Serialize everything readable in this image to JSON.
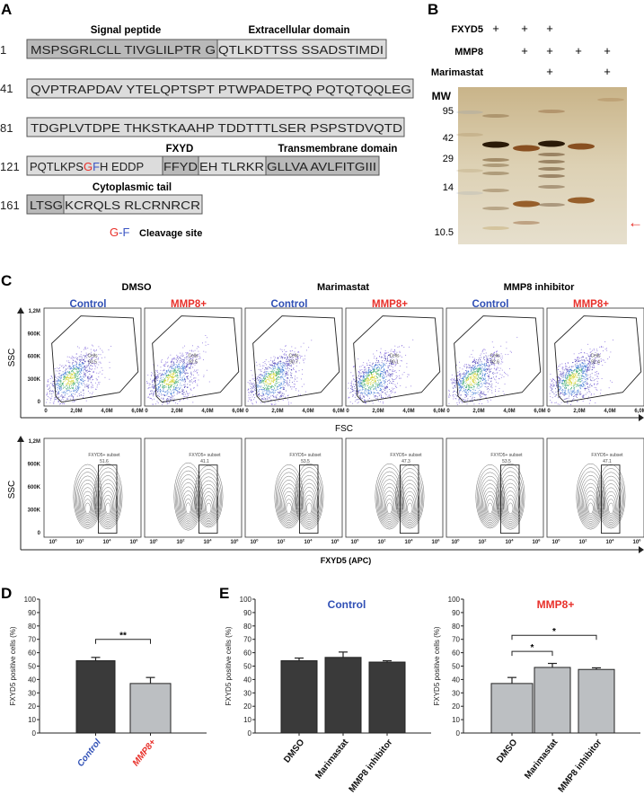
{
  "panel_a": {
    "letter": "A",
    "headers": {
      "signal": "Signal peptide",
      "extracellular": "Extracellular domain",
      "fxyd": "FXYD",
      "transmembrane": "Transmembrane domain",
      "cytoplasmic": "Cytoplasmic tail"
    },
    "rows": [
      {
        "num": "1",
        "segments": [
          "MSPSGRLCLL TIVGLILPTR G",
          "QTLKDTTSS SSADSTIMDI"
        ]
      },
      {
        "num": "41",
        "segments": [
          "QVPTRAPDAV YTELQPTSPT PTWPADETPQ PQTQTQQLEG"
        ]
      },
      {
        "num": "81",
        "segments": [
          "TDGPLVTDPE THKSTKAAHP TDDTTTLSER PSPSTDVQTD"
        ]
      },
      {
        "num": "121",
        "segments": [
          "PQTLKPS",
          "G",
          "F",
          "H EDDP",
          "FFYD",
          "EH TLRKR",
          "GLLVA AVLFITGIII"
        ]
      },
      {
        "num": "161",
        "segments": [
          "LTSG",
          "KCRQLS RLCRNRCR"
        ]
      }
    ],
    "legend": {
      "g": "G",
      "dash": "-",
      "f": "F",
      "label": "Cleavage site"
    },
    "colors": {
      "g": "#e8302a",
      "f": "#3b55c4",
      "dark_box": "#b9b9b9",
      "light_box": "#dcdcdc"
    }
  },
  "panel_b": {
    "letter": "B",
    "rows": [
      {
        "label": "FXYD5",
        "lanes": [
          "+",
          "+",
          "+",
          "",
          ""
        ]
      },
      {
        "label": "MMP8",
        "lanes": [
          "",
          "+",
          "+",
          "+",
          "+"
        ]
      },
      {
        "label": "Marimastat",
        "lanes": [
          "",
          "",
          "+",
          "",
          "+"
        ]
      }
    ],
    "mw_label": "MW",
    "mw_markers": [
      "95",
      "42",
      "29",
      "14",
      "10.5"
    ],
    "arrow": "←",
    "arrow_color": "#e8302a"
  },
  "panel_c": {
    "letter": "C",
    "groups": [
      "DMSO",
      "Marimastat",
      "MMP8 inhibitor"
    ],
    "conditions": [
      "Control",
      "MMP8+",
      "Control",
      "MMP8+",
      "Control",
      "MMP8+"
    ],
    "condition_colors": {
      "Control": "#2f4fb5",
      "MMP8+": "#e8302a"
    },
    "scatter": {
      "gate_name": "Cells",
      "gate_values": [
        "93.5",
        "92.5",
        "90.7",
        "90.1",
        "92.6",
        "92.4"
      ],
      "x_ticks": [
        "0",
        "2,0M",
        "4,0M",
        "6,0M"
      ],
      "y_ticks": [
        "1,2M",
        "900K",
        "600K",
        "300K",
        "0"
      ],
      "xlabel": "FSC",
      "ylabel": "SSC"
    },
    "contour": {
      "gate_name": "FXYD5+ subset",
      "gate_values": [
        "51.6",
        "41.1",
        "53.5",
        "47.3",
        "53.5",
        "47.1"
      ],
      "x_ticks": [
        "10",
        "10",
        "10",
        "10"
      ],
      "x_tick_exps": [
        "0",
        "2",
        "4",
        "6"
      ],
      "y_ticks": [
        "1,2M",
        "900K",
        "600K",
        "300K",
        "0"
      ],
      "xlabel": "FXYD5 (APC)",
      "ylabel": "SSC"
    }
  },
  "panel_d": {
    "letter": "D"
  },
  "panel_e": {
    "letter": "E"
  },
  "chart_data": [
    {
      "type": "bar",
      "panel": "D",
      "title": "",
      "categories": [
        "Control",
        "MMP8+"
      ],
      "category_colors": [
        "#2f4fb5",
        "#e8302a"
      ],
      "values": [
        54,
        37
      ],
      "errors": [
        2.5,
        4.5
      ],
      "bar_colors": [
        "#3a3a3a",
        "#bcbfc2"
      ],
      "ylabel": "FXYD5 positive cells (%)",
      "ylim": [
        0,
        100
      ],
      "yticks": [
        "0",
        "10",
        "20",
        "30",
        "40",
        "50",
        "60",
        "70",
        "80",
        "90",
        "100"
      ],
      "significance": [
        {
          "from": 0,
          "to": 1,
          "label": "**",
          "level": 70
        }
      ]
    },
    {
      "type": "bar",
      "panel": "E",
      "title": "Control",
      "title_color": "#2f4fb5",
      "categories": [
        "DMSO",
        "Marimastat",
        "MMP8 inhibitor"
      ],
      "values": [
        54,
        56.5,
        53
      ],
      "errors": [
        2,
        4,
        1
      ],
      "bar_colors": [
        "#3a3a3a",
        "#3a3a3a",
        "#3a3a3a"
      ],
      "ylabel": "FXYD5 positive cells (%)",
      "ylim": [
        0,
        100
      ],
      "yticks": [
        "0",
        "10",
        "20",
        "30",
        "40",
        "50",
        "60",
        "70",
        "80",
        "90",
        "100"
      ],
      "significance": []
    },
    {
      "type": "bar",
      "panel": "E",
      "title": "MMP8+",
      "title_color": "#e8302a",
      "categories": [
        "DMSO",
        "Marimastat",
        "MMP8 inhibitor"
      ],
      "values": [
        37,
        49,
        47.5
      ],
      "errors": [
        4.5,
        3,
        1.2
      ],
      "bar_colors": [
        "#bcbfc2",
        "#bcbfc2",
        "#bcbfc2"
      ],
      "ylabel": "FXYD5 positive cells (%)",
      "ylim": [
        0,
        100
      ],
      "yticks": [
        "0",
        "10",
        "20",
        "30",
        "40",
        "50",
        "60",
        "70",
        "80",
        "90",
        "100"
      ],
      "significance": [
        {
          "from": 0,
          "to": 1,
          "label": "*",
          "level": 61
        },
        {
          "from": 0,
          "to": 2,
          "label": "*",
          "level": 73
        }
      ]
    }
  ]
}
